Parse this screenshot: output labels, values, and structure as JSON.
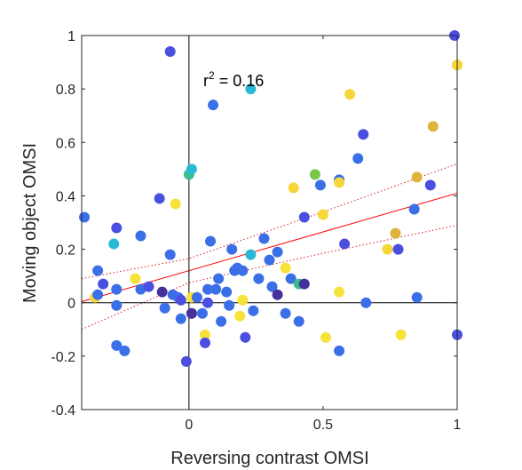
{
  "chart_data": {
    "type": "scatter",
    "xlabel": "Reversing contrast OMSI",
    "ylabel": "Moving object OMSI",
    "xlim": [
      -0.4,
      1
    ],
    "ylim": [
      -0.4,
      1
    ],
    "xticks": [
      0,
      0.5,
      1
    ],
    "xtick_labels": [
      "0",
      "0.5",
      "1"
    ],
    "yticks": [
      -0.4,
      -0.2,
      0,
      0.2,
      0.4,
      0.6,
      0.8,
      1
    ],
    "ytick_labels": [
      "-0.4",
      "-0.2",
      "0",
      "0.2",
      "0.4",
      "0.6",
      "0.8",
      "1"
    ],
    "grid": false,
    "annotation": {
      "base": "r",
      "superscript": "2",
      "text": " = 0.16",
      "x": 0.05,
      "y": 0.82
    },
    "regression": {
      "slope": 0.29,
      "intercept": 0.12,
      "line_color": "#ff0000"
    },
    "confidence_band": {
      "x": [
        -0.4,
        0,
        0.5,
        1
      ],
      "lower": [
        -0.1,
        0.075,
        0.185,
        0.29
      ],
      "upper": [
        0.09,
        0.165,
        0.34,
        0.52
      ]
    },
    "points": [
      {
        "x": -0.39,
        "y": 0.32,
        "c": "#3a6fe8"
      },
      {
        "x": -0.34,
        "y": 0.12,
        "c": "#3a6fe8"
      },
      {
        "x": -0.35,
        "y": 0.02,
        "c": "#f7d637"
      },
      {
        "x": -0.34,
        "y": 0.03,
        "c": "#3a6fe8"
      },
      {
        "x": -0.32,
        "y": 0.07,
        "c": "#4a4fe0"
      },
      {
        "x": -0.28,
        "y": 0.22,
        "c": "#29b9d6"
      },
      {
        "x": -0.27,
        "y": 0.28,
        "c": "#4a4fe0"
      },
      {
        "x": -0.27,
        "y": 0.05,
        "c": "#3a6fe8"
      },
      {
        "x": -0.27,
        "y": -0.01,
        "c": "#3a6fe8"
      },
      {
        "x": -0.27,
        "y": -0.16,
        "c": "#3a6fe8"
      },
      {
        "x": -0.24,
        "y": -0.18,
        "c": "#3a6fe8"
      },
      {
        "x": -0.18,
        "y": 0.25,
        "c": "#3a6fe8"
      },
      {
        "x": -0.2,
        "y": 0.09,
        "c": "#f7e23a"
      },
      {
        "x": -0.18,
        "y": 0.05,
        "c": "#3a6fe8"
      },
      {
        "x": -0.15,
        "y": 0.06,
        "c": "#4a4fe0"
      },
      {
        "x": -0.11,
        "y": 0.39,
        "c": "#4a4fe0"
      },
      {
        "x": -0.1,
        "y": 0.04,
        "c": "#46309e"
      },
      {
        "x": -0.09,
        "y": -0.02,
        "c": "#3a6fe8"
      },
      {
        "x": -0.07,
        "y": 0.94,
        "c": "#4a4fe0"
      },
      {
        "x": -0.07,
        "y": 0.18,
        "c": "#3a6fe8"
      },
      {
        "x": -0.06,
        "y": 0.03,
        "c": "#3a6fe8"
      },
      {
        "x": -0.05,
        "y": 0.37,
        "c": "#f7e23a"
      },
      {
        "x": -0.04,
        "y": 0.02,
        "c": "#3a6fe8"
      },
      {
        "x": -0.03,
        "y": -0.06,
        "c": "#3a6fe8"
      },
      {
        "x": -0.03,
        "y": 0.01,
        "c": "#4a4fe0"
      },
      {
        "x": -0.01,
        "y": -0.22,
        "c": "#4a4fe0"
      },
      {
        "x": 0,
        "y": 0.48,
        "c": "#3bbf87"
      },
      {
        "x": 0.01,
        "y": 0.5,
        "c": "#29b9d6"
      },
      {
        "x": 0.01,
        "y": 0.02,
        "c": "#f7e23a"
      },
      {
        "x": 0.01,
        "y": -0.04,
        "c": "#3a6fe8"
      },
      {
        "x": 0.01,
        "y": -0.04,
        "c": "#46309e"
      },
      {
        "x": 0.03,
        "y": 0.02,
        "c": "#3a6fe8"
      },
      {
        "x": 0.05,
        "y": -0.04,
        "c": "#3a6fe8"
      },
      {
        "x": 0.06,
        "y": -0.12,
        "c": "#f7e23a"
      },
      {
        "x": 0.06,
        "y": -0.15,
        "c": "#4a4fe0"
      },
      {
        "x": 0.07,
        "y": 0.05,
        "c": "#3a6fe8"
      },
      {
        "x": 0.07,
        "y": 0.0,
        "c": "#4a4fe0"
      },
      {
        "x": 0.08,
        "y": 0.23,
        "c": "#3a6fe8"
      },
      {
        "x": 0.09,
        "y": 0.74,
        "c": "#3a6fe8"
      },
      {
        "x": 0.1,
        "y": 0.05,
        "c": "#3a6fe8"
      },
      {
        "x": 0.11,
        "y": 0.09,
        "c": "#3a6fe8"
      },
      {
        "x": 0.12,
        "y": -0.07,
        "c": "#3a6fe8"
      },
      {
        "x": 0.14,
        "y": 0.04,
        "c": "#3a6fe8"
      },
      {
        "x": 0.15,
        "y": -0.01,
        "c": "#3a6fe8"
      },
      {
        "x": 0.16,
        "y": 0.2,
        "c": "#3a6fe8"
      },
      {
        "x": 0.17,
        "y": 0.12,
        "c": "#3a6fe8"
      },
      {
        "x": 0.18,
        "y": 0.13,
        "c": "#3a6fe8"
      },
      {
        "x": 0.19,
        "y": -0.05,
        "c": "#f7e23a"
      },
      {
        "x": 0.2,
        "y": 0.01,
        "c": "#f7e23a"
      },
      {
        "x": 0.2,
        "y": 0.12,
        "c": "#3a6fe8"
      },
      {
        "x": 0.21,
        "y": -0.13,
        "c": "#4a4fe0"
      },
      {
        "x": 0.23,
        "y": 0.8,
        "c": "#29b9d6"
      },
      {
        "x": 0.23,
        "y": 0.18,
        "c": "#29b9d6"
      },
      {
        "x": 0.24,
        "y": -0.03,
        "c": "#3a6fe8"
      },
      {
        "x": 0.26,
        "y": 0.09,
        "c": "#3a6fe8"
      },
      {
        "x": 0.28,
        "y": 0.24,
        "c": "#3a6fe8"
      },
      {
        "x": 0.3,
        "y": 0.16,
        "c": "#3a6fe8"
      },
      {
        "x": 0.31,
        "y": 0.06,
        "c": "#3a6fe8"
      },
      {
        "x": 0.33,
        "y": 0.03,
        "c": "#46309e"
      },
      {
        "x": 0.33,
        "y": 0.19,
        "c": "#3a6fe8"
      },
      {
        "x": 0.36,
        "y": 0.13,
        "c": "#f7e23a"
      },
      {
        "x": 0.36,
        "y": -0.04,
        "c": "#3a6fe8"
      },
      {
        "x": 0.38,
        "y": 0.09,
        "c": "#3a6fe8"
      },
      {
        "x": 0.39,
        "y": 0.43,
        "c": "#f7d637"
      },
      {
        "x": 0.41,
        "y": 0.07,
        "c": "#3bbf87"
      },
      {
        "x": 0.41,
        "y": -0.07,
        "c": "#3a6fe8"
      },
      {
        "x": 0.43,
        "y": 0.32,
        "c": "#4a4fe0"
      },
      {
        "x": 0.43,
        "y": 0.07,
        "c": "#46309e"
      },
      {
        "x": 0.47,
        "y": 0.48,
        "c": "#7ac747"
      },
      {
        "x": 0.49,
        "y": 0.44,
        "c": "#3a6fe8"
      },
      {
        "x": 0.5,
        "y": 0.33,
        "c": "#f7d637"
      },
      {
        "x": 0.51,
        "y": -0.13,
        "c": "#f7e23a"
      },
      {
        "x": 0.56,
        "y": 0.46,
        "c": "#3a6fe8"
      },
      {
        "x": 0.56,
        "y": 0.04,
        "c": "#f7e23a"
      },
      {
        "x": 0.56,
        "y": -0.18,
        "c": "#3a6fe8"
      },
      {
        "x": 0.56,
        "y": 0.45,
        "c": "#f7d637"
      },
      {
        "x": 0.58,
        "y": 0.22,
        "c": "#4a4fe0"
      },
      {
        "x": 0.6,
        "y": 0.78,
        "c": "#f7d637"
      },
      {
        "x": 0.63,
        "y": 0.54,
        "c": "#3a6fe8"
      },
      {
        "x": 0.65,
        "y": 0.63,
        "c": "#4a4fe0"
      },
      {
        "x": 0.66,
        "y": 0.0,
        "c": "#3a6fe8"
      },
      {
        "x": 0.74,
        "y": 0.2,
        "c": "#f7d637"
      },
      {
        "x": 0.77,
        "y": 0.26,
        "c": "#e0b33a"
      },
      {
        "x": 0.78,
        "y": 0.2,
        "c": "#4a4fe0"
      },
      {
        "x": 0.79,
        "y": -0.12,
        "c": "#f7e23a"
      },
      {
        "x": 0.84,
        "y": 0.35,
        "c": "#3a6fe8"
      },
      {
        "x": 0.85,
        "y": 0.47,
        "c": "#e0b33a"
      },
      {
        "x": 0.85,
        "y": 0.02,
        "c": "#3a6fe8"
      },
      {
        "x": 0.9,
        "y": 0.44,
        "c": "#4a4fe0"
      },
      {
        "x": 0.91,
        "y": 0.66,
        "c": "#e0b33a"
      },
      {
        "x": 0.99,
        "y": 1.0,
        "c": "#4a4fe0"
      },
      {
        "x": 1.0,
        "y": 0.89,
        "c": "#7ac747"
      },
      {
        "x": 1.0,
        "y": 0.89,
        "c": "#f7d637"
      },
      {
        "x": 1.0,
        "y": -0.12,
        "c": "#4a4fe0"
      }
    ]
  }
}
